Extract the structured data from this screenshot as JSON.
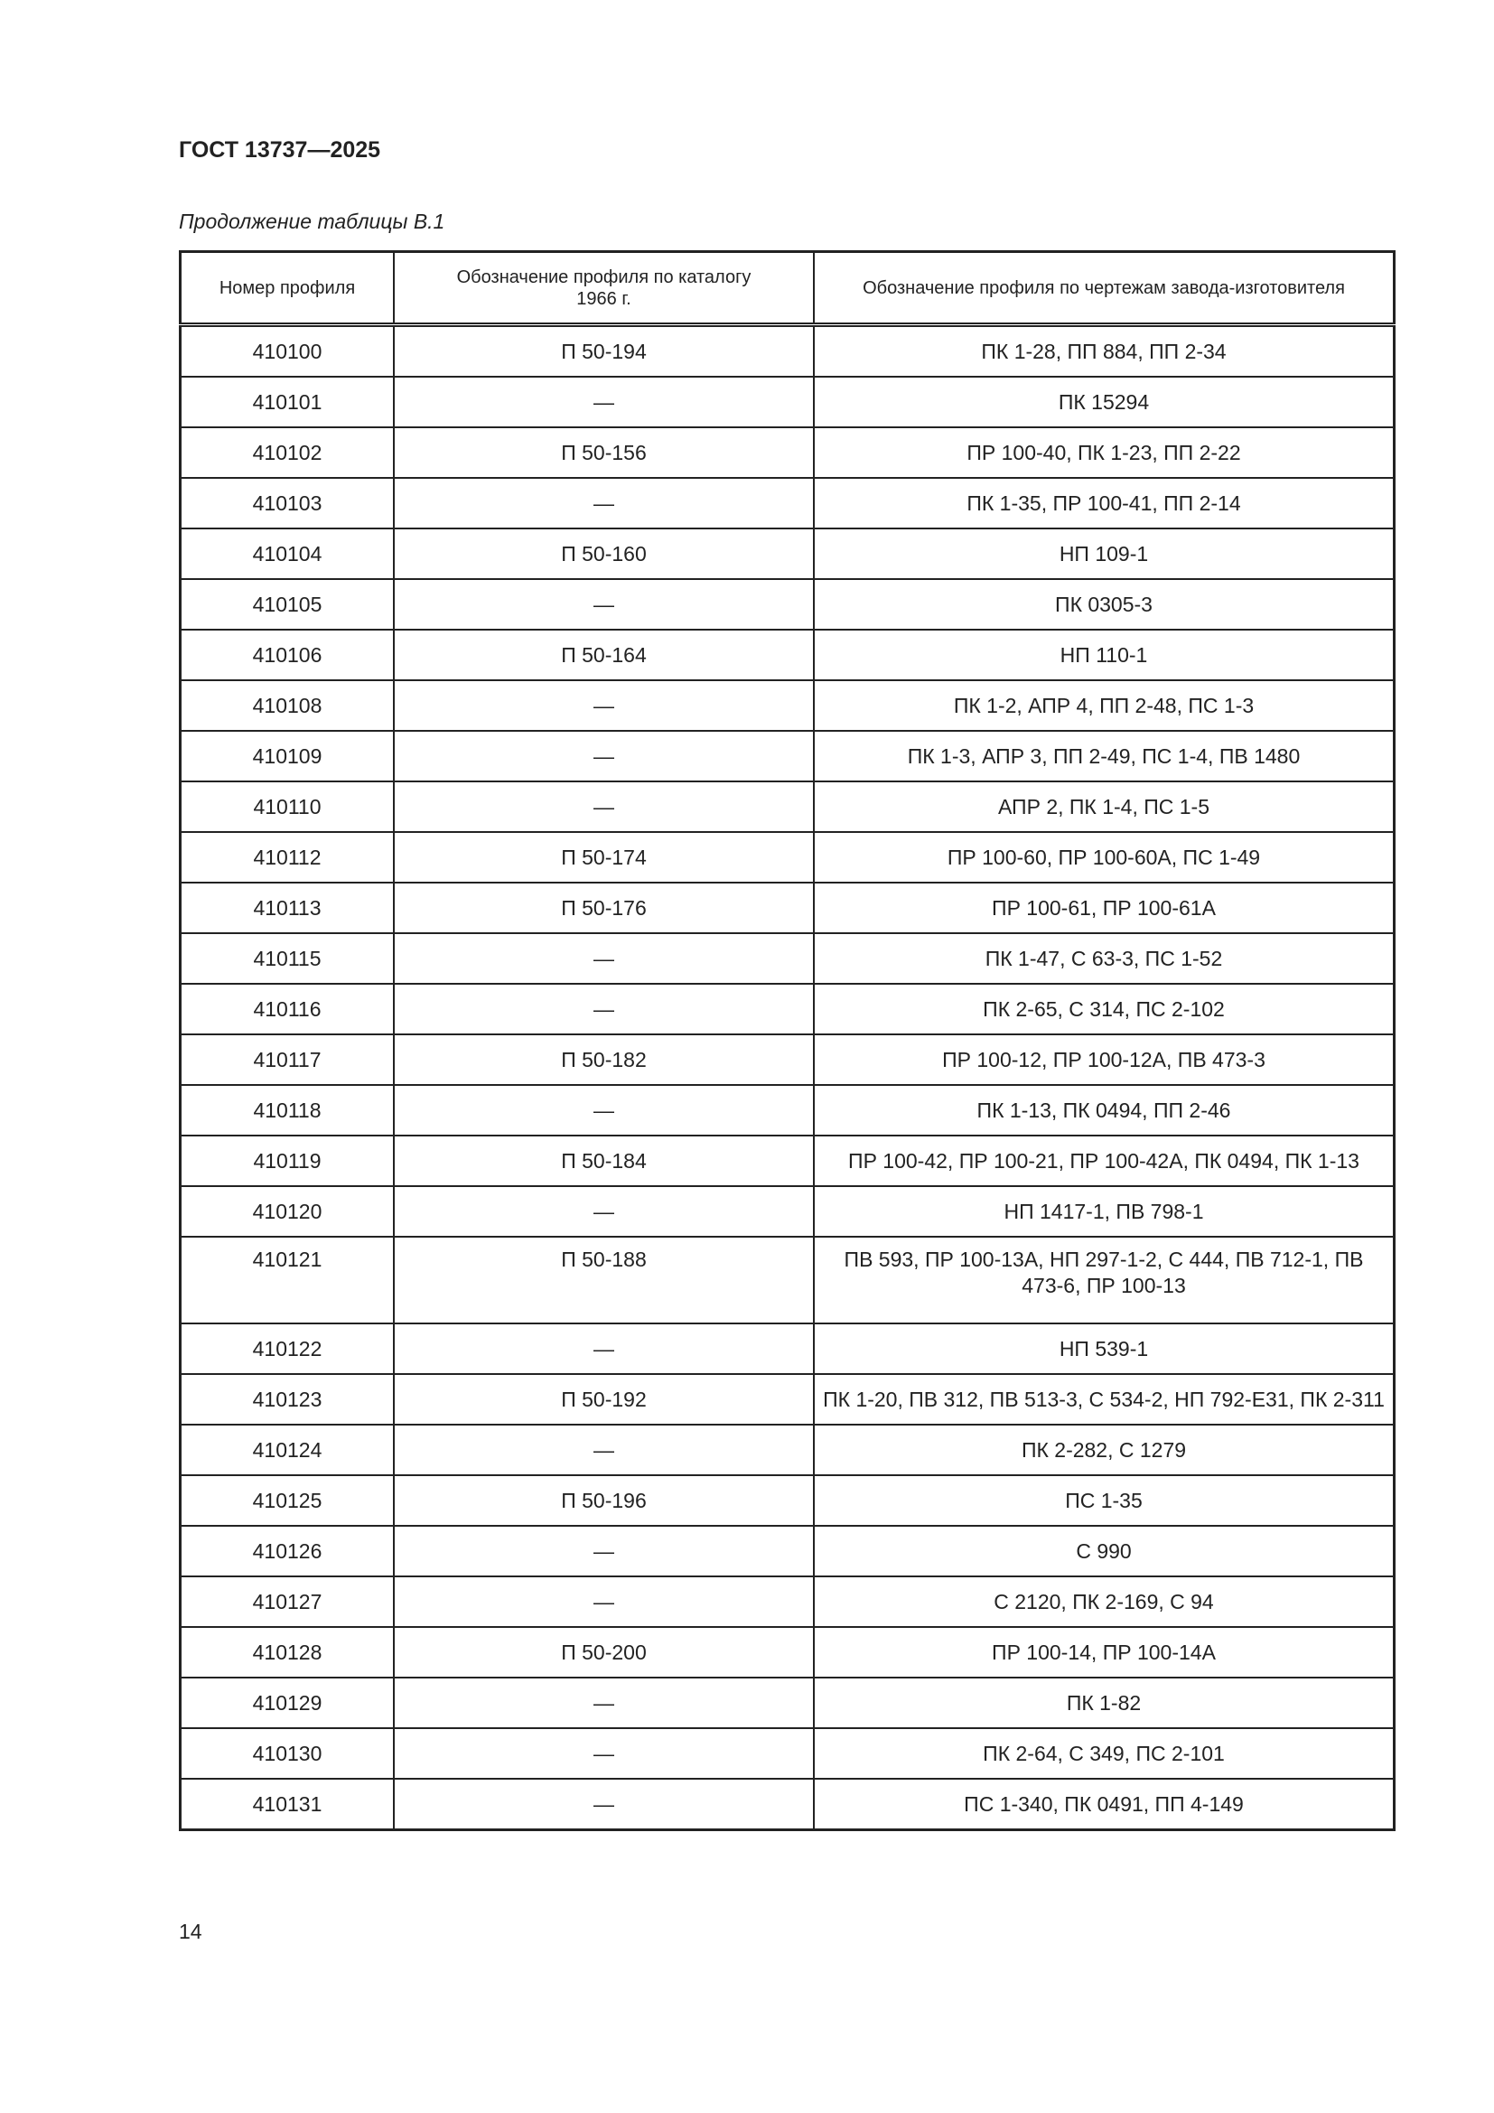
{
  "header": {
    "title": "ГОСТ 13737—2025",
    "caption": "Продолжение таблицы В.1"
  },
  "table": {
    "columns": [
      "Номер профиля",
      "Обозначение профиля по каталогу 1966 г.",
      "Обозначение профиля по чертежам завода-изготовителя"
    ],
    "rows": [
      [
        "410100",
        "П 50-194",
        "ПК 1-28, ПП 884, ПП 2-34"
      ],
      [
        "410101",
        "—",
        "ПК 15294"
      ],
      [
        "410102",
        "П 50-156",
        "ПР 100-40, ПК 1-23, ПП 2-22"
      ],
      [
        "410103",
        "—",
        "ПК 1-35, ПР 100-41, ПП 2-14"
      ],
      [
        "410104",
        "П 50-160",
        "НП 109-1"
      ],
      [
        "410105",
        "—",
        "ПК 0305-3"
      ],
      [
        "410106",
        "П 50-164",
        "НП 110-1"
      ],
      [
        "410108",
        "—",
        "ПК 1-2, АПР 4, ПП 2-48, ПС 1-3"
      ],
      [
        "410109",
        "—",
        "ПК 1-3, АПР 3, ПП 2-49, ПС 1-4, ПВ 1480"
      ],
      [
        "410110",
        "—",
        "АПР 2, ПК 1-4, ПС 1-5"
      ],
      [
        "410112",
        "П 50-174",
        "ПР 100-60, ПР 100-60А, ПС 1-49"
      ],
      [
        "410113",
        "П 50-176",
        "ПР 100-61, ПР 100-61А"
      ],
      [
        "410115",
        "—",
        "ПК 1-47, С 63-3, ПС 1-52"
      ],
      [
        "410116",
        "—",
        "ПК 2-65, С 314, ПС 2-102"
      ],
      [
        "410117",
        "П 50-182",
        "ПР 100-12, ПР 100-12А, ПВ 473-3"
      ],
      [
        "410118",
        "—",
        "ПК 1-13, ПК 0494, ПП 2-46"
      ],
      [
        "410119",
        "П 50-184",
        "ПР 100-42, ПР 100-21, ПР 100-42А, ПК 0494, ПК 1-13"
      ],
      [
        "410120",
        "—",
        "НП 1417-1, ПВ 798-1"
      ],
      [
        "410121",
        "П 50-188",
        "ПВ 593, ПР 100-13А, НП 297-1-2, С 444, ПВ 712-1, ПВ 473-6, ПР 100-13"
      ],
      [
        "410122",
        "—",
        "НП 539-1"
      ],
      [
        "410123",
        "П 50-192",
        "ПК 1-20, ПВ 312, ПВ 513-3, С 534-2, НП 792-Е31, ПК 2-311"
      ],
      [
        "410124",
        "—",
        "ПК 2-282, С 1279"
      ],
      [
        "410125",
        "П 50-196",
        "ПС 1-35"
      ],
      [
        "410126",
        "—",
        "С 990"
      ],
      [
        "410127",
        "—",
        "С 2120, ПК 2-169, С 94"
      ],
      [
        "410128",
        "П 50-200",
        "ПР 100-14, ПР 100-14А"
      ],
      [
        "410129",
        "—",
        "ПК 1-82"
      ],
      [
        "410130",
        "—",
        "ПК 2-64, С 349, ПС 2-101"
      ],
      [
        "410131",
        "—",
        "ПС 1-340, ПК 0491, ПП 4-149"
      ]
    ]
  },
  "footer": {
    "page_number": "14"
  }
}
